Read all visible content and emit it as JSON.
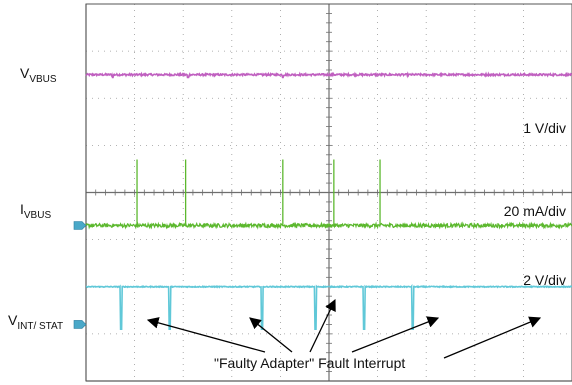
{
  "chart_data": {
    "type": "line",
    "title": "",
    "grid": true,
    "divisions": {
      "x": 10,
      "y": 8
    },
    "x_range_div": [
      0,
      10
    ],
    "series": [
      {
        "name": "VVBUS",
        "label": {
          "main": "V",
          "sub": "VBUS"
        },
        "scale": "1 V/div",
        "color": "#c060c0",
        "baseline_div": 6.5,
        "noise_div": 0.02,
        "dips_x_div": [
          0.55,
          2.1,
          4.05,
          10.2
        ]
      },
      {
        "name": "IVBUS",
        "label": {
          "main": "I",
          "sub": "VBUS"
        },
        "scale": "20 mA/div",
        "color": "#5cb82e",
        "baseline_div": 3.3,
        "noise_div": 0.04,
        "spikes_x_div": [
          1.05,
          2.05,
          4.05,
          5.1,
          6.05
        ],
        "spike_amp_div": 1.4
      },
      {
        "name": "VINT/STAT",
        "label": {
          "main": "V",
          "sub": "INT/ STAT"
        },
        "scale": "2 V/div",
        "color": "#60c8d8",
        "baseline_div": 2.0,
        "noise_div": 0.01,
        "dips_x_div": [
          0.72,
          1.72,
          3.62,
          4.72,
          5.72,
          6.72
        ],
        "dip_depth_div": 0.9
      }
    ],
    "annotation": {
      "text": "\"Faulty Adapter\" Fault Interrupt"
    }
  },
  "colors": {
    "grid_solid": "#6e6e6e",
    "grid_dot": "#9a9a9a",
    "frame": "#555555",
    "marker": "#4aa8c8"
  }
}
